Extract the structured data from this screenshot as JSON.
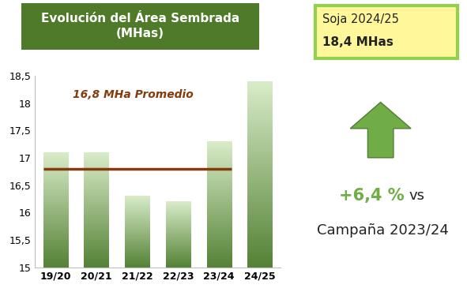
{
  "chart_data": {
    "type": "bar",
    "title": "Evolución del Área Sembrada\n(MHas)",
    "categories": [
      "19/20",
      "20/21",
      "21/22",
      "22/23",
      "23/24",
      "24/25"
    ],
    "values": [
      17.1,
      17.1,
      16.3,
      16.2,
      17.3,
      18.4
    ],
    "color": "#548235",
    "ylim": [
      15,
      18.5
    ],
    "yticks": [
      15,
      {
        "value": 15.5,
        "label": "15,5"
      },
      16,
      {
        "value": 16.5,
        "label": "16,5"
      },
      17,
      {
        "value": 17.5,
        "label": "17,5"
      },
      18,
      {
        "value": 18.5,
        "label": "18,5"
      }
    ],
    "grid": false,
    "average": {
      "value": 16.8,
      "label": "16,8 MHa Promedio",
      "color": "#843c0c",
      "categories": [
        "19/20",
        "20/21",
        "21/22",
        "22/23",
        "23/24"
      ]
    }
  },
  "callout": {
    "title": "Soja 2024/25",
    "value": "18,4 MHas",
    "change": "+6,4 %",
    "comparison": "vs",
    "reference": "Campaña 2023/24"
  }
}
